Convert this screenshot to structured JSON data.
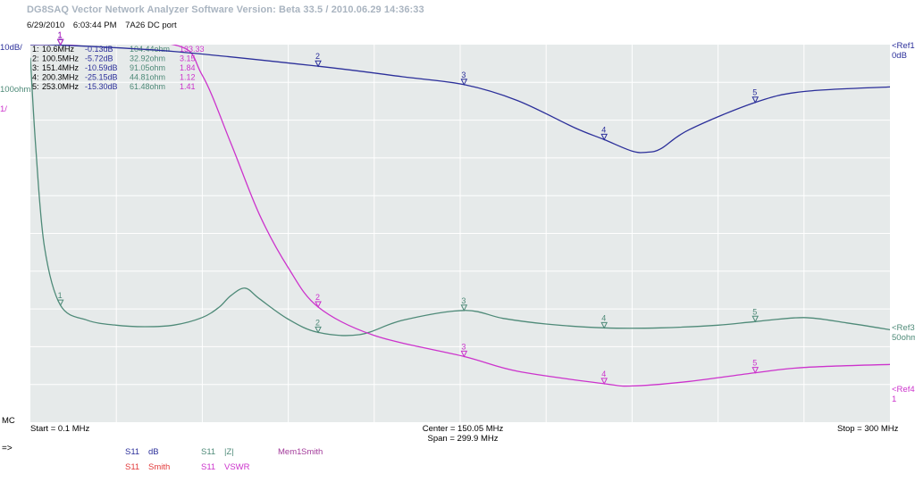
{
  "header": {
    "app_title": "DG8SAQ Vector Network Analyzer Software   Version:  Beta 33.5 / 2010.06.29 14:36:33",
    "date": "6/29/2010",
    "time": "6:03:44 PM",
    "note": "7A26 DC port"
  },
  "scales": {
    "db_scale": "10dB/",
    "z_scale": "100ohm/",
    "vswr_scale": "1/"
  },
  "refs": {
    "ref1_label": "<Ref1",
    "ref1_value": "0dB",
    "ref3_label": "<Ref3",
    "ref3_value": "50ohm",
    "ref4_label": "<Ref4",
    "ref4_value": "1"
  },
  "markers_table": [
    {
      "id": "1:",
      "freq": "10.6MHz",
      "db": "-0.13dB",
      "z": "104.44ohm",
      "vswr": "133.33"
    },
    {
      "id": "2:",
      "freq": "100.5MHz",
      "db": "-5.72dB",
      "z": "32.92ohm",
      "vswr": "3.15"
    },
    {
      "id": "3:",
      "freq": "151.4MHz",
      "db": "-10.59dB",
      "z": "91.05ohm",
      "vswr": "1.84"
    },
    {
      "id": "4:",
      "freq": "200.3MHz",
      "db": "-25.15dB",
      "z": "44.81ohm",
      "vswr": "1.12"
    },
    {
      "id": "5:",
      "freq": "253.0MHz",
      "db": "-15.30dB",
      "z": "61.48ohm",
      "vswr": "1.41"
    }
  ],
  "footer": {
    "mc": "MC",
    "arrow": "=>",
    "start": "Start = 0.1 MHz",
    "center": "Center = 150.05 MHz",
    "span": "Span = 299.9 MHz",
    "stop": "Stop = 300 MHz"
  },
  "legend": [
    {
      "param": "S11",
      "name": "dB",
      "color": "#2b2f9a"
    },
    {
      "param": "S11",
      "name": "Smith",
      "color": "#e23a3a"
    },
    {
      "param": "S11",
      "name": "|Z|",
      "color": "#4e8a78"
    },
    {
      "param": "S11",
      "name": "VSWR",
      "color": "#cc33cc"
    },
    {
      "param": "Mem1",
      "name": "Smith",
      "color": "#a23a9a"
    }
  ],
  "colors": {
    "plot_bg": "#e6eaea",
    "grid": "#ffffff",
    "db": "#2b2f9a",
    "z": "#4e8a78",
    "vswr": "#cc33cc"
  },
  "chart_data": {
    "type": "line",
    "xlabel": "",
    "ylabel": "",
    "xlim": [
      0.1,
      300
    ],
    "grid": true,
    "x_unit": "MHz",
    "series": [
      {
        "name": "S11 dB",
        "unit": "dB",
        "ref_value": 0,
        "per_div": 10,
        "x": [
          0.1,
          10.6,
          50,
          100.5,
          130,
          151.4,
          170,
          190,
          200.3,
          210,
          215,
          220,
          230,
          253,
          270,
          300
        ],
        "values": [
          0,
          -0.13,
          -1.8,
          -5.72,
          -8.5,
          -10.59,
          -14.8,
          -22,
          -25.15,
          -28.2,
          -28.5,
          -27.6,
          -22.5,
          -15.3,
          -12.4,
          -11.2
        ]
      },
      {
        "name": "S11 |Z|",
        "unit": "ohm",
        "ref_value": 50,
        "per_div": 100,
        "x": [
          0.1,
          2,
          5,
          10.6,
          20,
          30,
          40,
          50,
          60,
          66,
          70,
          75,
          80,
          90,
          100.5,
          115,
          130,
          151.4,
          165,
          180,
          200.3,
          220,
          240,
          253,
          270,
          285,
          300
        ],
        "values": [
          760,
          520,
          260,
          104.44,
          65,
          52,
          48,
          52,
          72,
          100,
          130,
          150,
          122,
          68,
          32.92,
          27,
          65,
          91.05,
          70,
          55,
          44.81,
          45,
          52,
          61.48,
          72,
          58,
          40
        ]
      },
      {
        "name": "S11 VSWR",
        "unit": "",
        "ref_value": 1,
        "per_div": 1,
        "x": [
          0.1,
          10.6,
          50,
          60,
          70,
          80,
          90,
          100.5,
          120,
          151.4,
          170,
          200.3,
          210,
          230,
          253,
          270,
          300
        ],
        "values": [
          133.33,
          133.33,
          133.33,
          9.3,
          7.5,
          5.6,
          4.2,
          3.15,
          2.4,
          1.84,
          1.45,
          1.12,
          1.06,
          1.18,
          1.41,
          1.55,
          1.63
        ]
      }
    ],
    "markers": [
      10.6,
      100.5,
      151.4,
      200.3,
      253.0
    ]
  }
}
